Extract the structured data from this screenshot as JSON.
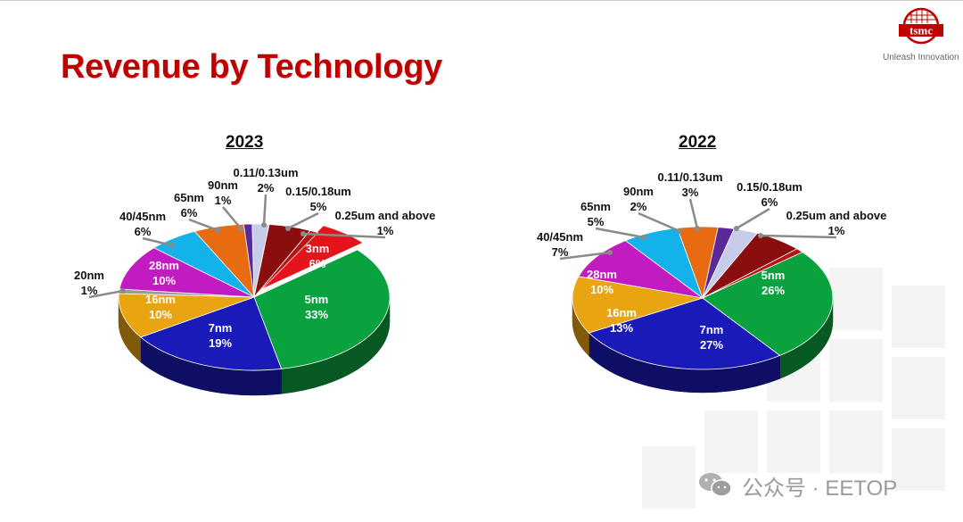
{
  "title": "Revenue by Technology",
  "logo": {
    "text": "tsmc",
    "slogan": "Unleash Innovation",
    "color": "#c00000"
  },
  "watermark": "公众号 · EETOP",
  "chart_data": [
    {
      "type": "pie",
      "title": "2023",
      "slices": [
        {
          "label": "3nm",
          "value": 6,
          "text": "6%",
          "color": "#e3141b"
        },
        {
          "label": "5nm",
          "value": 33,
          "text": "33%",
          "color": "#0aa23e"
        },
        {
          "label": "7nm",
          "value": 19,
          "text": "19%",
          "color": "#1a1ab8"
        },
        {
          "label": "16nm",
          "value": 10,
          "text": "10%",
          "color": "#e8a411"
        },
        {
          "label": "20nm",
          "value": 1,
          "text": "1%",
          "color": "#9a9a9a"
        },
        {
          "label": "28nm",
          "value": 10,
          "text": "10%",
          "color": "#c21bc2"
        },
        {
          "label": "40/45nm",
          "value": 6,
          "text": "6%",
          "color": "#14b2ea"
        },
        {
          "label": "65nm",
          "value": 6,
          "text": "6%",
          "color": "#e86b12"
        },
        {
          "label": "90nm",
          "value": 1,
          "text": "1%",
          "color": "#5a2a9a"
        },
        {
          "label": "0.11/0.13um",
          "value": 2,
          "text": "2%",
          "color": "#c7cde8"
        },
        {
          "label": "0.15/0.18um",
          "value": 5,
          "text": "5%",
          "color": "#8a0e0e"
        },
        {
          "label": "0.25um and above",
          "value": 1,
          "text": "1%",
          "color": "#b51414"
        }
      ]
    },
    {
      "type": "pie",
      "title": "2022",
      "slices": [
        {
          "label": "5nm",
          "value": 26,
          "text": "26%",
          "color": "#0aa23e"
        },
        {
          "label": "7nm",
          "value": 27,
          "text": "27%",
          "color": "#1a1ab8"
        },
        {
          "label": "16nm",
          "value": 13,
          "text": "13%",
          "color": "#e8a411"
        },
        {
          "label": "28nm",
          "value": 10,
          "text": "10%",
          "color": "#c21bc2"
        },
        {
          "label": "40/45nm",
          "value": 7,
          "text": "7%",
          "color": "#14b2ea"
        },
        {
          "label": "65nm",
          "value": 5,
          "text": "5%",
          "color": "#e86b12"
        },
        {
          "label": "90nm",
          "value": 2,
          "text": "2%",
          "color": "#5a2a9a"
        },
        {
          "label": "0.11/0.13um",
          "value": 3,
          "text": "3%",
          "color": "#c7cde8"
        },
        {
          "label": "0.15/0.18um",
          "value": 6,
          "text": "6%",
          "color": "#8a0e0e"
        },
        {
          "label": "0.25um and above",
          "value": 1,
          "text": "1%",
          "color": "#b51414"
        }
      ]
    }
  ]
}
